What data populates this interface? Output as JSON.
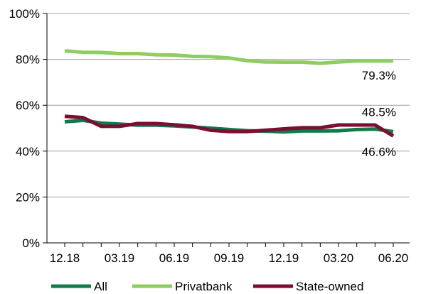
{
  "chart_data": {
    "type": "line",
    "title": "",
    "xlabel": "",
    "ylabel": "",
    "ylim": [
      0,
      100
    ],
    "y_ticks": [
      0,
      20,
      40,
      60,
      80,
      100
    ],
    "y_tick_labels": [
      "0%",
      "20%",
      "40%",
      "60%",
      "80%",
      "100%"
    ],
    "grid": "horizontal",
    "legend_position": "bottom",
    "x": [
      "12.18",
      "01.19",
      "02.19",
      "03.19",
      "04.19",
      "05.19",
      "06.19",
      "07.19",
      "08.19",
      "09.19",
      "10.19",
      "11.19",
      "12.19",
      "01.20",
      "02.20",
      "03.20",
      "04.20",
      "05.20",
      "06.20"
    ],
    "x_tick_labels": [
      "12.18",
      "03.19",
      "06.19",
      "09.19",
      "12.19",
      "03.20",
      "06.20"
    ],
    "series": [
      {
        "name": "All",
        "color": "#127a4a",
        "values": [
          52.8,
          53.4,
          52.2,
          51.8,
          51.3,
          51.3,
          51.0,
          50.5,
          50.0,
          49.4,
          48.9,
          48.7,
          48.4,
          48.8,
          48.8,
          48.9,
          49.4,
          49.6,
          48.5
        ],
        "end_label": "48.5%"
      },
      {
        "name": "Privatbank",
        "color": "#8fcd61",
        "values": [
          83.7,
          83.1,
          83.0,
          82.5,
          82.5,
          82.0,
          81.9,
          81.3,
          81.2,
          80.6,
          79.4,
          78.9,
          78.8,
          78.8,
          78.3,
          78.9,
          79.3,
          79.3,
          79.3
        ],
        "end_label": "79.3%"
      },
      {
        "name": "State-owned",
        "color": "#7a0f33",
        "values": [
          55.2,
          54.6,
          50.8,
          50.8,
          52.0,
          52.0,
          51.5,
          50.8,
          49.1,
          48.5,
          48.5,
          49.1,
          49.7,
          50.2,
          50.2,
          51.4,
          51.4,
          51.4,
          46.6
        ],
        "end_label": "46.6%"
      }
    ]
  }
}
